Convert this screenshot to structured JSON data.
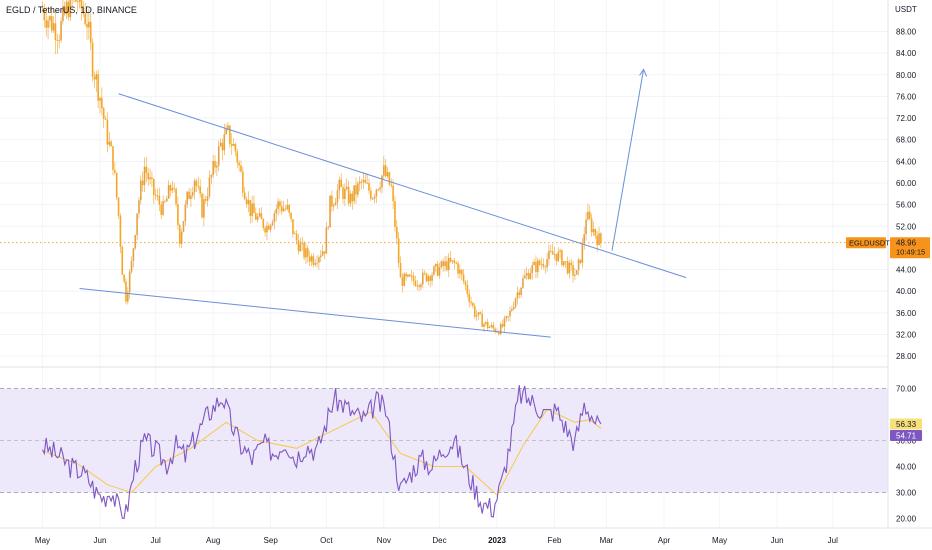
{
  "header": {
    "title": "EGLD / TetherUS, 1D, BINANCE"
  },
  "price_axis": {
    "unit": "USDT",
    "ticks": [
      "88.00",
      "84.00",
      "80.00",
      "76.00",
      "72.00",
      "68.00",
      "64.00",
      "60.00",
      "56.00",
      "52.00",
      "44.00",
      "40.00",
      "36.00",
      "32.00",
      "28.00"
    ],
    "symbol_tag": "EGLDUSDT",
    "last_price": "48.96",
    "countdown": "10:49:15"
  },
  "time_axis": {
    "labels": [
      "May",
      "Jun",
      "Jul",
      "Aug",
      "Sep",
      "Oct",
      "Nov",
      "Dec",
      "2023",
      "Feb",
      "Mar",
      "Apr",
      "May",
      "Jun",
      "Jul"
    ]
  },
  "rsi_axis": {
    "ticks": [
      "70.00",
      "50.00",
      "40.00",
      "30.00",
      "20.00"
    ],
    "rsi_value": "56.33",
    "rsi_ma_value": "54.71"
  },
  "colors": {
    "candle": "#f5a623",
    "trendline": "#6a8fd9",
    "rsi_line": "#7e57c2",
    "rsi_ma": "#f7c948",
    "rsi_band": "#ede8fa",
    "price_tag": "#f7931a"
  },
  "chart_data": [
    {
      "type": "line",
      "title": "EGLD / TetherUS, 1D, BINANCE",
      "ylabel": "USDT",
      "ylim": [
        26,
        92
      ],
      "x_range": [
        "2022-05-01",
        "2023-07-20"
      ],
      "series": [
        {
          "values": [
            [
              "2022-05-01",
              92
            ],
            [
              "2022-05-05",
              90
            ],
            [
              "2022-05-10",
              88
            ],
            [
              "2022-05-15",
              93
            ],
            [
              "2022-05-20",
              94
            ],
            [
              "2022-05-25",
              90
            ],
            [
              "2022-05-28",
              82
            ],
            [
              "2022-06-01",
              76
            ],
            [
              "2022-06-04",
              70
            ],
            [
              "2022-06-08",
              64
            ],
            [
              "2022-06-11",
              54
            ],
            [
              "2022-06-13",
              44
            ],
            [
              "2022-06-15",
              39
            ],
            [
              "2022-06-18",
              45
            ],
            [
              "2022-06-21",
              55
            ],
            [
              "2022-06-25",
              63
            ],
            [
              "2022-06-30",
              58
            ],
            [
              "2022-07-05",
              55
            ],
            [
              "2022-07-10",
              60
            ],
            [
              "2022-07-14",
              50
            ],
            [
              "2022-07-18",
              57
            ],
            [
              "2022-07-22",
              61
            ],
            [
              "2022-07-26",
              55
            ],
            [
              "2022-07-30",
              60
            ],
            [
              "2022-08-05",
              67
            ],
            [
              "2022-08-09",
              69
            ],
            [
              "2022-08-13",
              66
            ],
            [
              "2022-08-17",
              60
            ],
            [
              "2022-08-21",
              55
            ],
            [
              "2022-08-26",
              53
            ],
            [
              "2022-08-30",
              52
            ],
            [
              "2022-09-05",
              56
            ],
            [
              "2022-09-10",
              55
            ],
            [
              "2022-09-14",
              50
            ],
            [
              "2022-09-19",
              47
            ],
            [
              "2022-09-24",
              46
            ],
            [
              "2022-09-30",
              48
            ],
            [
              "2022-10-03",
              56
            ],
            [
              "2022-10-08",
              59
            ],
            [
              "2022-10-14",
              57
            ],
            [
              "2022-10-20",
              60
            ],
            [
              "2022-10-26",
              58
            ],
            [
              "2022-11-01",
              62
            ],
            [
              "2022-11-05",
              59
            ],
            [
              "2022-11-08",
              49
            ],
            [
              "2022-11-10",
              42
            ],
            [
              "2022-11-15",
              42
            ],
            [
              "2022-11-20",
              42
            ],
            [
              "2022-11-25",
              43
            ],
            [
              "2022-11-30",
              44
            ],
            [
              "2022-12-05",
              45
            ],
            [
              "2022-12-10",
              45
            ],
            [
              "2022-12-15",
              41
            ],
            [
              "2022-12-20",
              36
            ],
            [
              "2022-12-25",
              34
            ],
            [
              "2022-12-30",
              33
            ],
            [
              "2023-01-03",
              33
            ],
            [
              "2023-01-07",
              35
            ],
            [
              "2023-01-11",
              39
            ],
            [
              "2023-01-15",
              42
            ],
            [
              "2023-01-19",
              44
            ],
            [
              "2023-01-24",
              45
            ],
            [
              "2023-01-28",
              46
            ],
            [
              "2023-02-01",
              47
            ],
            [
              "2023-02-05",
              46
            ],
            [
              "2023-02-09",
              44
            ],
            [
              "2023-02-13",
              43
            ],
            [
              "2023-02-16",
              48
            ],
            [
              "2023-02-18",
              54
            ],
            [
              "2023-02-21",
              52
            ],
            [
              "2023-02-24",
              50
            ],
            [
              "2023-02-26",
              48.96
            ]
          ]
        }
      ]
    },
    {
      "type": "line",
      "title": "",
      "ylim": [
        17,
        73
      ],
      "x_range": [
        "2022-05-01",
        "2023-07-20"
      ],
      "series": [
        {
          "values": [
            [
              "2022-05-01",
              48
            ],
            [
              "2022-05-10",
              44
            ],
            [
              "2022-05-16",
              40
            ],
            [
              "2022-05-22",
              38
            ],
            [
              "2022-05-26",
              35
            ],
            [
              "2022-05-30",
              30
            ],
            [
              "2022-06-03",
              28
            ],
            [
              "2022-06-07",
              31
            ],
            [
              "2022-06-11",
              24
            ],
            [
              "2022-06-15",
              22
            ],
            [
              "2022-06-20",
              40
            ],
            [
              "2022-06-25",
              50
            ],
            [
              "2022-07-01",
              46
            ],
            [
              "2022-07-07",
              41
            ],
            [
              "2022-07-12",
              48
            ],
            [
              "2022-07-17",
              44
            ],
            [
              "2022-07-23",
              52
            ],
            [
              "2022-07-29",
              60
            ],
            [
              "2022-08-06",
              67
            ],
            [
              "2022-08-11",
              56
            ],
            [
              "2022-08-16",
              48
            ],
            [
              "2022-08-22",
              43
            ],
            [
              "2022-08-28",
              49
            ],
            [
              "2022-09-03",
              45
            ],
            [
              "2022-09-09",
              50
            ],
            [
              "2022-09-14",
              43
            ],
            [
              "2022-09-20",
              48
            ],
            [
              "2022-09-26",
              46
            ],
            [
              "2022-10-01",
              57
            ],
            [
              "2022-10-05",
              66
            ],
            [
              "2022-10-10",
              64
            ],
            [
              "2022-10-16",
              60
            ],
            [
              "2022-10-22",
              58
            ],
            [
              "2022-10-28",
              65
            ],
            [
              "2022-11-02",
              62
            ],
            [
              "2022-11-07",
              42
            ],
            [
              "2022-11-10",
              31
            ],
            [
              "2022-11-16",
              38
            ],
            [
              "2022-11-21",
              43
            ],
            [
              "2022-11-27",
              40
            ],
            [
              "2022-12-03",
              47
            ],
            [
              "2022-12-09",
              50
            ],
            [
              "2022-12-14",
              41
            ],
            [
              "2022-12-19",
              33
            ],
            [
              "2022-12-24",
              26
            ],
            [
              "2022-12-30",
              24
            ],
            [
              "2023-01-04",
              35
            ],
            [
              "2023-01-09",
              52
            ],
            [
              "2023-01-13",
              68
            ],
            [
              "2023-01-18",
              66
            ],
            [
              "2023-01-23",
              63
            ],
            [
              "2023-01-28",
              60
            ],
            [
              "2023-02-02",
              62
            ],
            [
              "2023-02-07",
              55
            ],
            [
              "2023-02-12",
              49
            ],
            [
              "2023-02-17",
              64
            ],
            [
              "2023-02-21",
              60
            ],
            [
              "2023-02-24",
              56
            ],
            [
              "2023-02-26",
              56.33
            ]
          ]
        },
        {
          "values": [
            [
              "2022-05-01",
              46
            ],
            [
              "2022-05-20",
              41
            ],
            [
              "2022-06-05",
              33
            ],
            [
              "2022-06-18",
              30
            ],
            [
              "2022-07-01",
              40
            ],
            [
              "2022-07-20",
              47
            ],
            [
              "2022-08-08",
              57
            ],
            [
              "2022-08-25",
              50
            ],
            [
              "2022-09-15",
              47
            ],
            [
              "2022-10-05",
              54
            ],
            [
              "2022-10-25",
              61
            ],
            [
              "2022-11-10",
              45
            ],
            [
              "2022-11-28",
              40
            ],
            [
              "2022-12-15",
              40
            ],
            [
              "2023-01-01",
              29
            ],
            [
              "2023-01-15",
              48
            ],
            [
              "2023-01-28",
              62
            ],
            [
              "2023-02-12",
              57
            ],
            [
              "2023-02-20",
              58
            ],
            [
              "2023-02-26",
              54.71
            ]
          ]
        }
      ]
    }
  ]
}
